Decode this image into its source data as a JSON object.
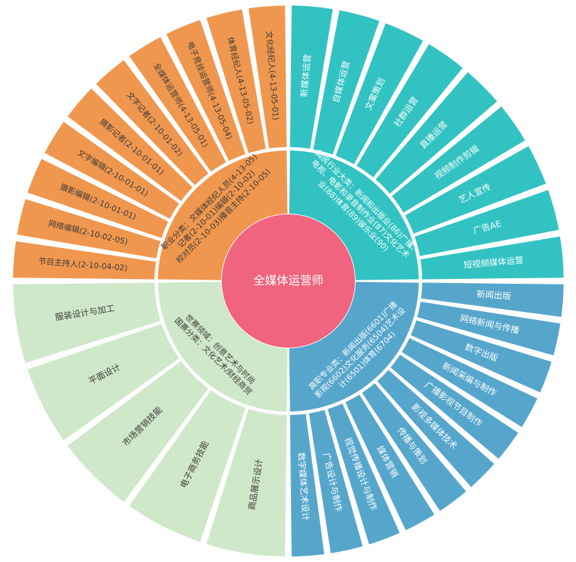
{
  "center": {
    "title": "全媒体运营师",
    "color": "#F0647F"
  },
  "quadrants": [
    {
      "key": "career",
      "color": "#F0974F",
      "text_color": "#3D3A36",
      "inner_lines": [
        "职业分类：文媒体经纪人员(4-13-05)",
        "记者(2-10-01)编辑(2-10-02)",
        "校对员(2-10-03)播音主持(2-10-05)"
      ],
      "items": [
        "文化经纪人(4-13-05-01)",
        "体育经纪人(4-13-05-02)",
        "电子竞技运营师(4-13-05-04)",
        "全媒体运营师(4-13-05-01)",
        "文字记者(2-10-01-02)",
        "摄影记者(2-10-01-01)",
        "文字编辑(2-10-01-01)",
        "摄影编辑(2-10-01-01)",
        "网络编辑(2-10-02-05)",
        "节目主持人(2-10-04-02)"
      ]
    },
    {
      "key": "industry",
      "color": "#33C2C2",
      "text_color": "#FFFFFF",
      "inner_lines": [
        "国民行业大类：新闻和出版业(86)广播、",
        "电视、电影和录音制作业(87)文化艺术",
        "业(88)体育(89)娱乐业(90)"
      ],
      "items": [
        "新媒体运营",
        "自媒体运营",
        "文案策划",
        "社群运营",
        "直播运营",
        "视频制作剪辑",
        "艺人宣传",
        "广告AE",
        "短视频媒体运营"
      ]
    },
    {
      "key": "major",
      "color": "#56A6CC",
      "text_color": "#FFFFFF",
      "inner_lines": [
        "高职专业类：新闻出版(6601)广播",
        "影视(6602)文化服务(6504)艺术设",
        "计(6501)体育(6704)"
      ],
      "items": [
        "新闻出版",
        "网络新闻与传播",
        "数字出版",
        "新闻采编与制作",
        "广播影视节目制作",
        "影视多媒体技术",
        "传播与策划",
        "媒体营销",
        "视觉传播设计与制作",
        "广告设计与制作",
        "数字媒体艺术设计"
      ]
    },
    {
      "key": "world",
      "color": "#CFE8CA",
      "text_color": "#3D3A36",
      "inner_lines": [
        "世赛领域：创意艺术与时尚",
        "国赛分类：文化艺术/财经商贸"
      ],
      "items": [
        "服装设计与加工",
        "平面设计",
        "市场营销技能",
        "电子商务技能",
        "商品展示设计"
      ]
    }
  ]
}
